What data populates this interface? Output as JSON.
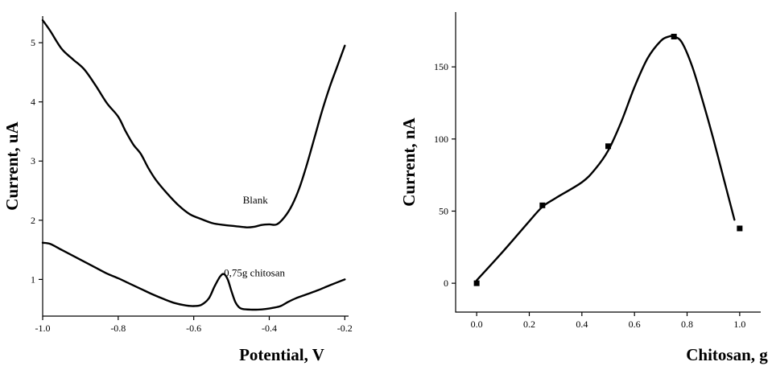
{
  "chart_data": [
    {
      "type": "line",
      "xlabel": "Potential, V",
      "ylabel": "Current, uA",
      "xlim": [
        -1.0,
        -0.19
      ],
      "ylim": [
        0.38,
        5.45
      ],
      "xticks": [
        -1.0,
        -0.8,
        -0.6,
        -0.4,
        -0.2
      ],
      "xtick_labels": [
        "-1.0",
        "-0.8",
        "-0.6",
        "-0.4",
        "-0.2"
      ],
      "yticks": [
        1,
        2,
        3,
        4,
        5
      ],
      "ytick_labels": [
        "1",
        "2",
        "3",
        "4",
        "5"
      ],
      "grid": false,
      "series": [
        {
          "name": "Blank",
          "x": [
            -1.0,
            -0.98,
            -0.95,
            -0.92,
            -0.89,
            -0.86,
            -0.83,
            -0.8,
            -0.78,
            -0.76,
            -0.74,
            -0.72,
            -0.7,
            -0.67,
            -0.64,
            -0.61,
            -0.58,
            -0.55,
            -0.52,
            -0.49,
            -0.46,
            -0.44,
            -0.42,
            -0.4,
            -0.38,
            -0.36,
            -0.34,
            -0.32,
            -0.3,
            -0.28,
            -0.26,
            -0.24,
            -0.22,
            -0.2
          ],
          "y": [
            5.38,
            5.2,
            4.9,
            4.72,
            4.55,
            4.28,
            3.98,
            3.75,
            3.5,
            3.28,
            3.12,
            2.88,
            2.68,
            2.45,
            2.25,
            2.1,
            2.02,
            1.95,
            1.92,
            1.9,
            1.88,
            1.89,
            1.92,
            1.93,
            1.93,
            2.05,
            2.25,
            2.55,
            2.95,
            3.4,
            3.85,
            4.25,
            4.6,
            4.95
          ]
        },
        {
          "name": "0.75g chitosan",
          "x": [
            -1.0,
            -0.98,
            -0.95,
            -0.92,
            -0.89,
            -0.86,
            -0.83,
            -0.8,
            -0.77,
            -0.74,
            -0.71,
            -0.68,
            -0.65,
            -0.62,
            -0.6,
            -0.58,
            -0.56,
            -0.545,
            -0.53,
            -0.52,
            -0.51,
            -0.5,
            -0.49,
            -0.48,
            -0.47,
            -0.45,
            -0.43,
            -0.41,
            -0.39,
            -0.37,
            -0.35,
            -0.33,
            -0.3,
            -0.27,
            -0.24,
            -0.2
          ],
          "y": [
            1.62,
            1.6,
            1.5,
            1.4,
            1.3,
            1.2,
            1.1,
            1.02,
            0.93,
            0.84,
            0.75,
            0.67,
            0.6,
            0.56,
            0.55,
            0.57,
            0.68,
            0.88,
            1.05,
            1.09,
            1.0,
            0.8,
            0.62,
            0.53,
            0.5,
            0.49,
            0.49,
            0.5,
            0.52,
            0.55,
            0.62,
            0.68,
            0.75,
            0.82,
            0.9,
            1.0
          ]
        }
      ],
      "annotations": [
        {
          "text": "Blank",
          "x": -0.47,
          "y": 2.28
        },
        {
          "text": "0,75g chitosan",
          "x": -0.52,
          "y": 1.05
        }
      ]
    },
    {
      "type": "line",
      "xlabel": "Chitosan, g",
      "ylabel": "Current, nA",
      "xlim": [
        -0.08,
        1.08
      ],
      "ylim": [
        -20,
        188
      ],
      "xticks": [
        0.0,
        0.2,
        0.4,
        0.6,
        0.8,
        1.0
      ],
      "xtick_labels": [
        "0.0",
        "0.2",
        "0.4",
        "0.6",
        "0.8",
        "1.0"
      ],
      "yticks": [
        0,
        50,
        100,
        150
      ],
      "ytick_labels": [
        "0",
        "50",
        "100",
        "150"
      ],
      "grid": false,
      "points": {
        "x": [
          0.0,
          0.25,
          0.5,
          0.75,
          1.0
        ],
        "y": [
          0,
          54,
          95,
          171,
          38
        ]
      },
      "fit": {
        "x": [
          0.0,
          0.1,
          0.2,
          0.25,
          0.3,
          0.4,
          0.45,
          0.5,
          0.55,
          0.6,
          0.65,
          0.7,
          0.73,
          0.75,
          0.78,
          0.82,
          0.86,
          0.9,
          0.94,
          0.98
        ],
        "y": [
          2,
          22,
          43,
          53,
          59,
          70,
          79,
          92,
          112,
          136,
          156,
          168,
          171,
          171,
          167,
          150,
          126,
          100,
          72,
          44
        ]
      }
    }
  ]
}
